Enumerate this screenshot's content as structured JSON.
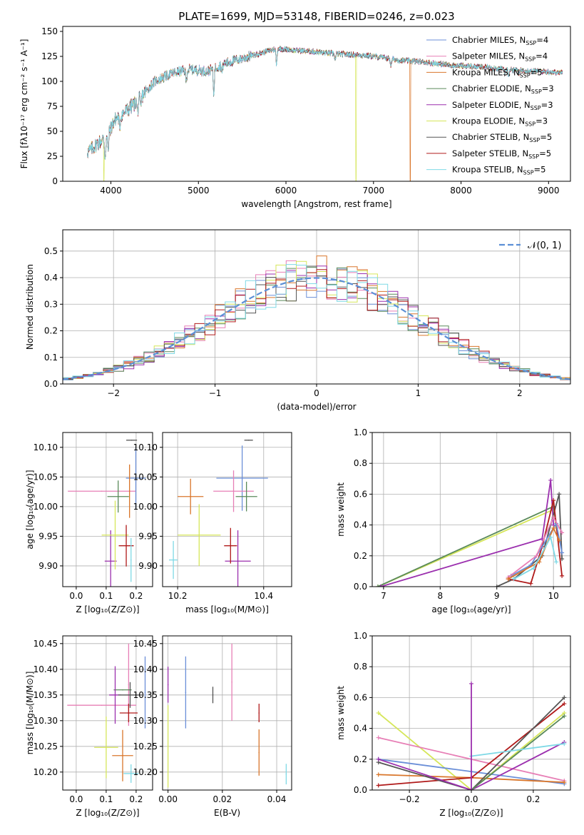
{
  "title": "PLATE=1699, MJD=53148, FIBERID=0246, z=0.023",
  "colors": {
    "chabrier_miles": "#6b8fd8",
    "salpeter_miles": "#e77fb6",
    "kroupa_miles": "#d9762b",
    "chabrier_elodie": "#5a8a5a",
    "salpeter_elodie": "#9b2fae",
    "kroupa_elodie": "#d6e65a",
    "chabrier_stelib": "#555555",
    "salpeter_stelib": "#b01a1a",
    "kroupa_stelib": "#7fd9e6",
    "normal": "#5b8fd6",
    "grid": "#b0b0b0"
  },
  "chart_data": [
    {
      "type": "line",
      "xlabel": "wavelength [Angstrom, rest frame]",
      "ylabel": "Flux [fλ10⁻¹⁷ erg cm⁻² s⁻¹ A⁻¹]",
      "xlim": [
        3450,
        9250
      ],
      "ylim": [
        0,
        155
      ],
      "xticks": [
        4000,
        5000,
        6000,
        7000,
        8000,
        9000
      ],
      "yticks": [
        0,
        25,
        50,
        75,
        100,
        125,
        150
      ],
      "legend_position": "top-right",
      "legend": [
        "Chabrier MILES, N_SSP=4",
        "Salpeter MILES, N_SSP=4",
        "Kroupa MILES, N_SSP=5",
        "Chabrier ELODIE, N_SSP=3",
        "Salpeter ELODIE, N_SSP=3",
        "Kroupa ELODIE, N_SSP=3",
        "Chabrier STELIB, N_SSP=5",
        "Salpeter STELIB, N_SSP=5",
        "Kroupa STELIB, N_SSP=5"
      ],
      "continuum": [
        [
          3750,
          30
        ],
        [
          3850,
          38
        ],
        [
          3950,
          45
        ],
        [
          4050,
          62
        ],
        [
          4200,
          72
        ],
        [
          4350,
          85
        ],
        [
          4500,
          100
        ],
        [
          4700,
          108
        ],
        [
          4900,
          112
        ],
        [
          5100,
          110
        ],
        [
          5300,
          118
        ],
        [
          5500,
          123
        ],
        [
          5700,
          128
        ],
        [
          5900,
          133
        ],
        [
          6100,
          131
        ],
        [
          6300,
          130
        ],
        [
          6500,
          128
        ],
        [
          6700,
          127
        ],
        [
          6900,
          126
        ],
        [
          7100,
          124
        ],
        [
          7300,
          121
        ],
        [
          7500,
          120
        ],
        [
          7700,
          118
        ],
        [
          7900,
          116
        ],
        [
          8100,
          115
        ],
        [
          8300,
          114
        ],
        [
          8500,
          112
        ],
        [
          8700,
          111
        ],
        [
          8900,
          110
        ],
        [
          9100,
          109
        ]
      ],
      "absorption_lines": [
        [
          3934,
          0.55
        ],
        [
          3968,
          0.6
        ],
        [
          4101,
          0.82
        ],
        [
          4305,
          0.85
        ],
        [
          4341,
          0.86
        ],
        [
          4861,
          0.9
        ],
        [
          5175,
          0.78
        ],
        [
          5270,
          0.93
        ],
        [
          5892,
          0.88
        ],
        [
          6563,
          0.95
        ],
        [
          7200,
          0.94
        ],
        [
          8500,
          0.96
        ],
        [
          8542,
          0.95
        ],
        [
          8662,
          0.96
        ]
      ],
      "dropouts": [
        [
          3920,
          "kroupa_elodie"
        ],
        [
          6800,
          "kroupa_elodie"
        ],
        [
          7420,
          "kroupa_miles"
        ]
      ]
    },
    {
      "type": "histogram",
      "xlabel": "(data-model)/error",
      "ylabel": "Normed distribution",
      "xlim": [
        -2.5,
        2.5
      ],
      "ylim": [
        0,
        0.58
      ],
      "xticks": [
        -2,
        -1,
        0,
        1,
        2
      ],
      "yticks": [
        0.0,
        0.1,
        0.2,
        0.3,
        0.4,
        0.5
      ],
      "bin_width": 0.1,
      "legend_position": "top-right",
      "legend": [
        "𝒩(0, 1)"
      ]
    },
    {
      "type": "scatter",
      "xlabel": "Z [log₁₀(Z/Z⊙)]",
      "ylabel": "age  [log₁₀(age/yr)]",
      "xlim": [
        -0.045,
        0.255
      ],
      "ylim": [
        9.865,
        10.125
      ],
      "xticks": [
        0.0,
        0.1,
        0.2
      ],
      "yticks": [
        9.9,
        9.95,
        10.0,
        10.05,
        10.1
      ],
      "points": [
        {
          "c": "chabrier_miles",
          "x": 0.199,
          "y": 10.048,
          "xe": 0.033,
          "ye": 0.052
        },
        {
          "c": "salpeter_miles",
          "x": 0.085,
          "y": 10.026,
          "xe": 0.113,
          "ye": 0.0
        },
        {
          "c": "kroupa_miles",
          "x": 0.178,
          "y": 10.026,
          "xe": 0.0,
          "ye": 0.045
        },
        {
          "c": "chabrier_elodie",
          "x": 0.14,
          "y": 10.017,
          "xe": 0.036,
          "ye": 0.027
        },
        {
          "c": "salpeter_elodie",
          "x": 0.115,
          "y": 9.908,
          "xe": 0.02,
          "ye": 0.052
        },
        {
          "c": "kroupa_elodie",
          "x": 0.13,
          "y": 9.952,
          "xe": 0.045,
          "ye": 0.058
        },
        {
          "c": "chabrier_stelib",
          "x": 0.185,
          "y": 10.112,
          "xe": 0.018,
          "ye": 0.0
        },
        {
          "c": "salpeter_stelib",
          "x": 0.167,
          "y": 9.934,
          "xe": 0.025,
          "ye": 0.035
        },
        {
          "c": "kroupa_stelib",
          "x": 0.183,
          "y": 9.91,
          "xe": 0.0,
          "ye": 0.037
        }
      ]
    },
    {
      "type": "scatter",
      "xlabel": "mass [log₁₀(M/M⊙)]",
      "ylabel": "",
      "xlim": [
        10.165,
        10.465
      ],
      "ylim": [
        9.865,
        10.125
      ],
      "xticks": [
        10.2,
        10.4
      ],
      "yticks": [
        9.9,
        9.95,
        10.0,
        10.05,
        10.1
      ],
      "points": [
        {
          "c": "chabrier_miles",
          "x": 10.35,
          "y": 10.048,
          "xe": 0.06,
          "ye": 0.055
        },
        {
          "c": "salpeter_miles",
          "x": 10.33,
          "y": 10.026,
          "xe": 0.047,
          "ye": 0.035
        },
        {
          "c": "kroupa_miles",
          "x": 10.23,
          "y": 10.017,
          "xe": 0.03,
          "ye": 0.03
        },
        {
          "c": "chabrier_elodie",
          "x": 10.36,
          "y": 10.017,
          "xe": 0.025,
          "ye": 0.025
        },
        {
          "c": "salpeter_elodie",
          "x": 10.34,
          "y": 9.908,
          "xe": 0.03,
          "ye": 0.052
        },
        {
          "c": "kroupa_elodie",
          "x": 10.25,
          "y": 9.952,
          "xe": 0.05,
          "ye": 0.052
        },
        {
          "c": "chabrier_stelib",
          "x": 10.365,
          "y": 10.112,
          "xe": 0.01,
          "ye": 0.0
        },
        {
          "c": "salpeter_stelib",
          "x": 10.323,
          "y": 9.934,
          "xe": 0.015,
          "ye": 0.03
        },
        {
          "c": "kroupa_stelib",
          "x": 10.19,
          "y": 9.91,
          "xe": 0.01,
          "ye": 0.032
        }
      ]
    },
    {
      "type": "line",
      "xlabel": "age  [log₁₀(age/yr)]",
      "ylabel": "mass weight",
      "xlim": [
        6.8,
        10.3
      ],
      "ylim": [
        0,
        1.0
      ],
      "xticks": [
        7,
        8,
        9,
        10
      ],
      "yticks": [
        0.0,
        0.2,
        0.4,
        0.6,
        0.8,
        1.0
      ],
      "series": [
        {
          "c": "kroupa_elodie",
          "pts": [
            [
              6.9,
              0.0
            ],
            [
              10.0,
              0.5
            ],
            [
              10.05,
              0.38
            ]
          ]
        },
        {
          "c": "chabrier_elodie",
          "pts": [
            [
              6.9,
              0.0
            ],
            [
              10.0,
              0.52
            ],
            [
              10.05,
              0.4
            ]
          ]
        },
        {
          "c": "salpeter_elodie",
          "pts": [
            [
              6.95,
              0.0
            ],
            [
              9.8,
              0.31
            ],
            [
              9.95,
              0.69
            ],
            [
              10.0,
              0.4
            ]
          ]
        },
        {
          "c": "chabrier_stelib",
          "pts": [
            [
              9.0,
              0.0
            ],
            [
              9.3,
              0.05
            ],
            [
              9.8,
              0.2
            ],
            [
              10.1,
              0.6
            ],
            [
              10.15,
              0.18
            ]
          ]
        },
        {
          "c": "salpeter_stelib",
          "pts": [
            [
              9.2,
              0.05
            ],
            [
              9.6,
              0.02
            ],
            [
              9.8,
              0.26
            ],
            [
              10.0,
              0.56
            ],
            [
              10.15,
              0.07
            ]
          ]
        },
        {
          "c": "chabrier_miles",
          "pts": [
            [
              9.25,
              0.07
            ],
            [
              9.6,
              0.14
            ],
            [
              10.05,
              0.41
            ],
            [
              10.15,
              0.22
            ]
          ]
        },
        {
          "c": "salpeter_miles",
          "pts": [
            [
              9.2,
              0.06
            ],
            [
              9.7,
              0.2
            ],
            [
              10.0,
              0.45
            ],
            [
              10.15,
              0.35
            ]
          ]
        },
        {
          "c": "kroupa_miles",
          "pts": [
            [
              9.2,
              0.05
            ],
            [
              9.75,
              0.16
            ],
            [
              10.0,
              0.38
            ],
            [
              10.1,
              0.3
            ]
          ]
        },
        {
          "c": "kroupa_stelib",
          "pts": [
            [
              9.3,
              0.05
            ],
            [
              9.65,
              0.12
            ],
            [
              9.95,
              0.32
            ],
            [
              10.05,
              0.16
            ]
          ]
        }
      ]
    },
    {
      "type": "scatter",
      "xlabel": "Z [log₁₀(Z/Z⊙)]",
      "ylabel": "mass [log₁₀(M/M⊙)]",
      "xlim": [
        -0.045,
        0.255
      ],
      "ylim": [
        10.165,
        10.465
      ],
      "xticks": [
        0.0,
        0.1,
        0.2
      ],
      "yticks": [
        10.2,
        10.25,
        10.3,
        10.35,
        10.4,
        10.45
      ],
      "points": [
        {
          "c": "chabrier_miles",
          "x": 0.23,
          "y": 10.355,
          "xe": 0.0,
          "ye": 0.07
        },
        {
          "c": "salpeter_miles",
          "x": 0.085,
          "y": 10.33,
          "xe": 0.115,
          "ye": 0.0
        },
        {
          "c": "salpeter_miles",
          "x": 0.175,
          "y": 10.37,
          "xe": 0.0,
          "ye": 0.08
        },
        {
          "c": "kroupa_miles",
          "x": 0.155,
          "y": 10.232,
          "xe": 0.035,
          "ye": 0.05
        },
        {
          "c": "chabrier_elodie",
          "x": 0.155,
          "y": 10.36,
          "xe": 0.03,
          "ye": 0.0
        },
        {
          "c": "salpeter_elodie",
          "x": 0.13,
          "y": 10.35,
          "xe": 0.02,
          "ye": 0.056
        },
        {
          "c": "kroupa_elodie",
          "x": 0.1,
          "y": 10.248,
          "xe": 0.04,
          "ye": 0.06
        },
        {
          "c": "chabrier_stelib",
          "x": 0.18,
          "y": 10.35,
          "xe": 0.04,
          "ye": 0.025
        },
        {
          "c": "salpeter_stelib",
          "x": 0.175,
          "y": 10.315,
          "xe": 0.03,
          "ye": 0.018
        },
        {
          "c": "kroupa_stelib",
          "x": 0.183,
          "y": 10.197,
          "xe": 0.025,
          "ye": 0.018
        }
      ]
    },
    {
      "type": "scatter",
      "xlabel": "E(B-V)",
      "ylabel": "",
      "xlim": [
        -0.002,
        0.0455
      ],
      "ylim": [
        10.165,
        10.465
      ],
      "xticks": [
        0.0,
        0.02,
        0.04
      ],
      "yticks": [
        10.2,
        10.25,
        10.3,
        10.35,
        10.4,
        10.45
      ],
      "points": [
        {
          "c": "salpeter_elodie",
          "x": 0.0,
          "y": 10.37,
          "xe": 0,
          "ye": 0.035
        },
        {
          "c": "kroupa_elodie",
          "x": 0.0,
          "y": 10.25,
          "xe": 0,
          "ye": 0.08
        },
        {
          "c": "chabrier_miles",
          "x": 0.0065,
          "y": 10.355,
          "xe": 0,
          "ye": 0.07
        },
        {
          "c": "chabrier_stelib",
          "x": 0.0165,
          "y": 10.35,
          "xe": 0,
          "ye": 0.016
        },
        {
          "c": "salpeter_miles",
          "x": 0.0235,
          "y": 10.375,
          "xe": 0,
          "ye": 0.075
        },
        {
          "c": "salpeter_stelib",
          "x": 0.0335,
          "y": 10.315,
          "xe": 0,
          "ye": 0.018
        },
        {
          "c": "kroupa_miles",
          "x": 0.0335,
          "y": 10.238,
          "xe": 0,
          "ye": 0.045
        },
        {
          "c": "kroupa_stelib",
          "x": 0.0435,
          "y": 10.196,
          "xe": 0,
          "ye": 0.02
        }
      ]
    },
    {
      "type": "line",
      "xlabel": "Z [log₁₀(Z/Z⊙)]",
      "ylabel": "mass weight",
      "xlim": [
        -0.32,
        0.32
      ],
      "ylim": [
        0,
        1.0
      ],
      "xticks": [
        -0.2,
        0.0,
        0.2
      ],
      "yticks": [
        0.0,
        0.2,
        0.4,
        0.6,
        0.8,
        1.0
      ],
      "series": [
        {
          "c": "kroupa_elodie",
          "pts": [
            [
              -0.3,
              0.5
            ],
            [
              0.0,
              0.0
            ],
            [
              0.3,
              0.5
            ]
          ]
        },
        {
          "c": "salpeter_miles",
          "pts": [
            [
              -0.3,
              0.34
            ],
            [
              0.3,
              0.06
            ]
          ]
        },
        {
          "c": "chabrier_miles",
          "pts": [
            [
              -0.3,
              0.2
            ],
            [
              0.0,
              0.12
            ],
            [
              0.3,
              0.04
            ]
          ]
        },
        {
          "c": "kroupa_miles",
          "pts": [
            [
              -0.3,
              0.1
            ],
            [
              0.0,
              0.08
            ],
            [
              0.3,
              0.05
            ]
          ]
        },
        {
          "c": "salpeter_stelib",
          "pts": [
            [
              -0.3,
              0.03
            ],
            [
              0.0,
              0.08
            ],
            [
              0.3,
              0.56
            ]
          ]
        },
        {
          "c": "chabrier_stelib",
          "pts": [
            [
              -0.3,
              0.18
            ],
            [
              0.0,
              0.0
            ],
            [
              0.3,
              0.6
            ]
          ]
        },
        {
          "c": "salpeter_elodie",
          "pts": [
            [
              -0.3,
              0.2
            ],
            [
              0.0,
              0.0
            ],
            [
              0.3,
              0.31
            ]
          ]
        },
        {
          "c": "chabrier_elodie",
          "pts": [
            [
              0.0,
              0.0
            ],
            [
              0.3,
              0.48
            ]
          ]
        },
        {
          "c": "kroupa_stelib",
          "pts": [
            [
              0.0,
              0.22
            ],
            [
              0.3,
              0.3
            ]
          ]
        },
        {
          "c": "salpeter_elodie",
          "pts": [
            [
              0.0,
              0.0
            ],
            [
              0.0,
              0.69
            ]
          ]
        }
      ]
    }
  ]
}
